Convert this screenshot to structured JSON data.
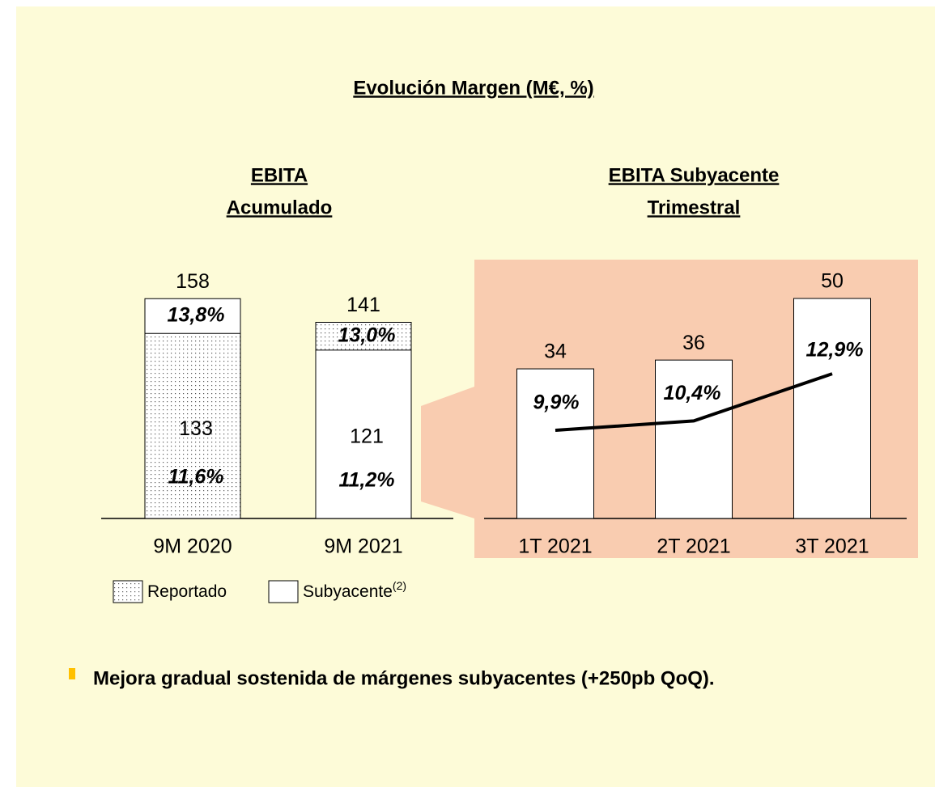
{
  "title": "Evolución Margen (M€, %)",
  "bullet": "Mejora gradual sostenida de márgenes subyacentes (+250pb QoQ).",
  "chart_data": [
    {
      "type": "overlap_bar",
      "title_lines": [
        "EBITA",
        "Acumulado"
      ],
      "categories": [
        "9M 2020",
        "9M 2021"
      ],
      "series": [
        {
          "name": "Reportado",
          "pattern": "dotted",
          "color": "#ffffff",
          "values": [
            133,
            141
          ],
          "margin": {
            "values": [
              11.6,
              13.0
            ],
            "value_labels": [
              "11,6%",
              "13,0%"
            ]
          }
        },
        {
          "name": "Subyacente",
          "name_note": "(2)",
          "pattern": "solid",
          "color": "#ffffff",
          "values": [
            158,
            121
          ],
          "margin": {
            "values": [
              13.8,
              11.2
            ],
            "value_labels": [
              "13,8%",
              "11,2%"
            ]
          }
        }
      ]
    },
    {
      "type": "bar_line",
      "title_lines": [
        "EBITA Subyacente",
        "Trimestral"
      ],
      "categories": [
        "1T 2021",
        "2T 2021",
        "3T 2021"
      ],
      "values": [
        34,
        36,
        50
      ],
      "color": "#ffffff",
      "line": {
        "values": [
          9.9,
          10.4,
          12.9
        ],
        "value_labels": [
          "9,9%",
          "10,4%",
          "12,9%"
        ],
        "color": "#000000"
      }
    }
  ]
}
